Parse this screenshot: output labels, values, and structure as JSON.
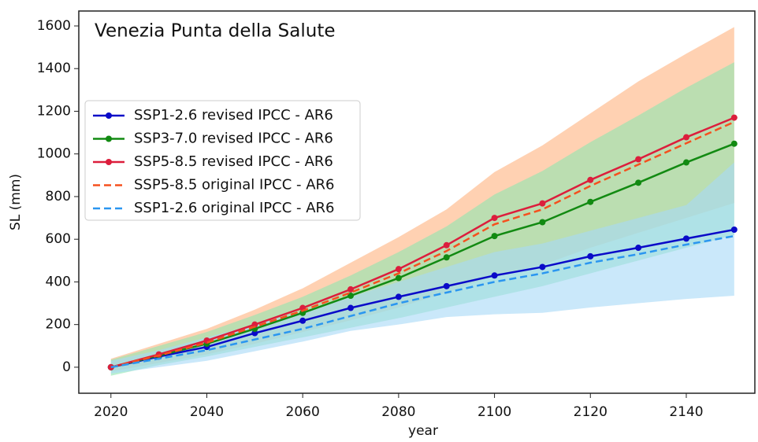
{
  "chart_data": {
    "type": "line",
    "title": "Venezia Punta della Salute",
    "xlabel": "year",
    "ylabel": "SL (mm)",
    "x": [
      2020,
      2030,
      2040,
      2050,
      2060,
      2070,
      2080,
      2090,
      2100,
      2110,
      2120,
      2130,
      2140,
      2150
    ],
    "xlim": [
      2013.3,
      2154.3
    ],
    "ylim": [
      -122,
      1670
    ],
    "xticks": [
      2020,
      2040,
      2060,
      2080,
      2100,
      2120,
      2140
    ],
    "yticks": [
      0,
      200,
      400,
      600,
      800,
      1000,
      1200,
      1400,
      1600
    ],
    "legend": "upper left",
    "bands": [
      {
        "color": "#ffb27f",
        "lower": [
          -20,
          20,
          60,
          110,
          165,
          220,
          280,
          350,
          430,
          480,
          560,
          630,
          700,
          770
        ],
        "upper": [
          40,
          110,
          180,
          270,
          370,
          490,
          610,
          740,
          915,
          1040,
          1190,
          1340,
          1470,
          1595
        ]
      },
      {
        "color": "#8ee6b0",
        "lower": [
          -40,
          10,
          50,
          95,
          140,
          185,
          230,
          280,
          330,
          380,
          440,
          500,
          560,
          620
        ],
        "upper": [
          35,
          100,
          165,
          245,
          330,
          430,
          540,
          660,
          810,
          920,
          1055,
          1180,
          1310,
          1430
        ]
      },
      {
        "color": "#a6d8f7",
        "lower": [
          -30,
          0,
          30,
          75,
          120,
          170,
          200,
          235,
          248,
          255,
          280,
          300,
          320,
          335
        ],
        "upper": [
          30,
          80,
          140,
          200,
          260,
          330,
          400,
          470,
          540,
          580,
          640,
          700,
          760,
          960
        ]
      }
    ],
    "series": [
      {
        "name": "SSP1-2.6 revised IPCC - AR6",
        "color": "#0a0ac8",
        "style": "solid",
        "marker": true,
        "values": [
          0,
          50,
          95,
          160,
          218,
          278,
          330,
          380,
          430,
          470,
          520,
          560,
          603,
          645
        ]
      },
      {
        "name": "SSP3-7.0 revised IPCC - AR6",
        "color": "#128a12",
        "style": "solid",
        "marker": true,
        "values": [
          0,
          55,
          110,
          180,
          255,
          335,
          418,
          515,
          615,
          680,
          775,
          865,
          960,
          1048
        ]
      },
      {
        "name": "SSP5-8.5 revised IPCC - AR6",
        "color": "#dc1e3c",
        "style": "solid",
        "marker": true,
        "values": [
          0,
          60,
          125,
          200,
          278,
          365,
          460,
          572,
          700,
          768,
          878,
          975,
          1078,
          1170
        ]
      },
      {
        "name": "SSP5-8.5 original IPCC - AR6",
        "color": "#f5501e",
        "style": "dashed",
        "marker": false,
        "values": [
          0,
          55,
          115,
          190,
          265,
          350,
          440,
          545,
          670,
          740,
          850,
          950,
          1050,
          1150
        ]
      },
      {
        "name": "SSP1-2.6 original IPCC - AR6",
        "color": "#2a96f0",
        "style": "dashed",
        "marker": false,
        "values": [
          0,
          40,
          80,
          130,
          180,
          240,
          300,
          350,
          400,
          440,
          490,
          530,
          575,
          615
        ]
      }
    ]
  }
}
